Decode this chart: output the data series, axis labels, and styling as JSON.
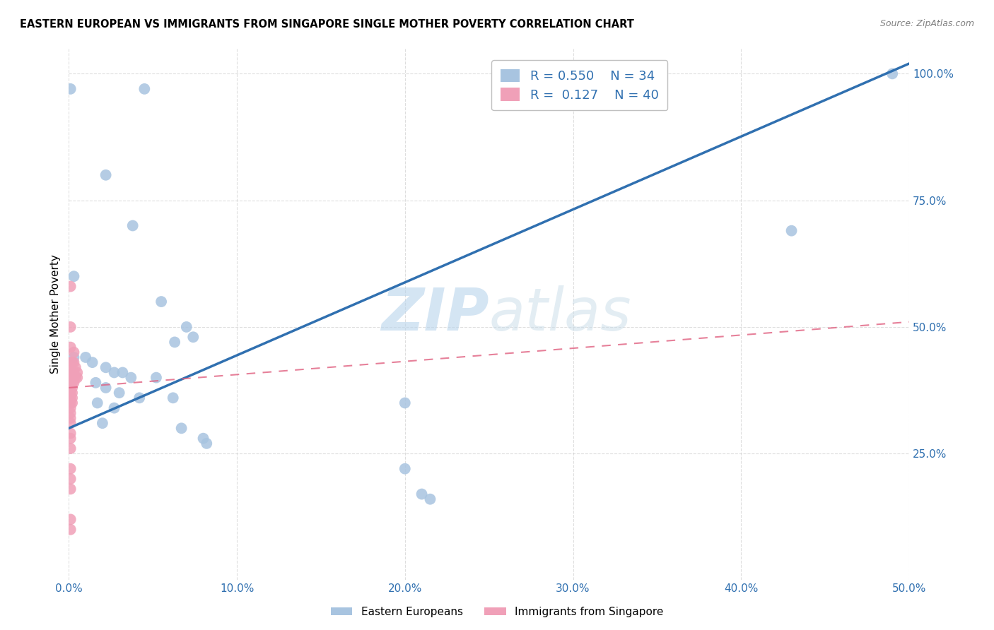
{
  "title": "EASTERN EUROPEAN VS IMMIGRANTS FROM SINGAPORE SINGLE MOTHER POVERTY CORRELATION CHART",
  "source": "Source: ZipAtlas.com",
  "ylabel": "Single Mother Poverty",
  "legend_label1": "Eastern Europeans",
  "legend_label2": "Immigrants from Singapore",
  "R1": 0.55,
  "N1": 34,
  "R2": 0.127,
  "N2": 40,
  "watermark_zip": "ZIP",
  "watermark_atlas": "atlas",
  "blue_color": "#a8c4e0",
  "pink_color": "#f0a0b8",
  "blue_line_color": "#3070b0",
  "pink_line_color": "#e06080",
  "blue_scatter": [
    [
      0.001,
      0.97
    ],
    [
      0.045,
      0.97
    ],
    [
      0.022,
      0.8
    ],
    [
      0.038,
      0.7
    ],
    [
      0.003,
      0.6
    ],
    [
      0.055,
      0.55
    ],
    [
      0.07,
      0.5
    ],
    [
      0.074,
      0.48
    ],
    [
      0.063,
      0.47
    ],
    [
      0.003,
      0.44
    ],
    [
      0.01,
      0.44
    ],
    [
      0.014,
      0.43
    ],
    [
      0.022,
      0.42
    ],
    [
      0.027,
      0.41
    ],
    [
      0.032,
      0.41
    ],
    [
      0.037,
      0.4
    ],
    [
      0.052,
      0.4
    ],
    [
      0.016,
      0.39
    ],
    [
      0.022,
      0.38
    ],
    [
      0.03,
      0.37
    ],
    [
      0.042,
      0.36
    ],
    [
      0.062,
      0.36
    ],
    [
      0.017,
      0.35
    ],
    [
      0.027,
      0.34
    ],
    [
      0.02,
      0.31
    ],
    [
      0.067,
      0.3
    ],
    [
      0.08,
      0.28
    ],
    [
      0.082,
      0.27
    ],
    [
      0.2,
      0.35
    ],
    [
      0.2,
      0.22
    ],
    [
      0.21,
      0.17
    ],
    [
      0.215,
      0.16
    ],
    [
      0.43,
      0.69
    ],
    [
      0.49,
      1.0
    ]
  ],
  "pink_scatter": [
    [
      0.001,
      0.58
    ],
    [
      0.001,
      0.5
    ],
    [
      0.001,
      0.46
    ],
    [
      0.003,
      0.45
    ],
    [
      0.001,
      0.43
    ],
    [
      0.002,
      0.43
    ],
    [
      0.003,
      0.43
    ],
    [
      0.004,
      0.42
    ],
    [
      0.001,
      0.41
    ],
    [
      0.002,
      0.41
    ],
    [
      0.003,
      0.41
    ],
    [
      0.005,
      0.41
    ],
    [
      0.001,
      0.4
    ],
    [
      0.002,
      0.4
    ],
    [
      0.003,
      0.4
    ],
    [
      0.004,
      0.4
    ],
    [
      0.005,
      0.4
    ],
    [
      0.001,
      0.39
    ],
    [
      0.002,
      0.39
    ],
    [
      0.003,
      0.39
    ],
    [
      0.001,
      0.38
    ],
    [
      0.002,
      0.38
    ],
    [
      0.001,
      0.37
    ],
    [
      0.002,
      0.37
    ],
    [
      0.001,
      0.36
    ],
    [
      0.002,
      0.36
    ],
    [
      0.001,
      0.35
    ],
    [
      0.002,
      0.35
    ],
    [
      0.001,
      0.34
    ],
    [
      0.001,
      0.33
    ],
    [
      0.001,
      0.32
    ],
    [
      0.001,
      0.31
    ],
    [
      0.001,
      0.29
    ],
    [
      0.001,
      0.28
    ],
    [
      0.001,
      0.26
    ],
    [
      0.001,
      0.22
    ],
    [
      0.001,
      0.2
    ],
    [
      0.001,
      0.18
    ],
    [
      0.001,
      0.12
    ],
    [
      0.001,
      0.1
    ]
  ],
  "blue_line": [
    [
      0.0,
      0.3
    ],
    [
      0.5,
      1.02
    ]
  ],
  "pink_line": [
    [
      0.0,
      0.38
    ],
    [
      0.5,
      0.51
    ]
  ],
  "xlim": [
    0.0,
    0.5
  ],
  "ylim": [
    0.0,
    1.05
  ],
  "xticks": [
    0.0,
    0.1,
    0.2,
    0.3,
    0.4,
    0.5
  ],
  "xtick_labels": [
    "0.0%",
    "10.0%",
    "20.0%",
    "30.0%",
    "40.0%",
    "50.0%"
  ],
  "yticks": [
    0.25,
    0.5,
    0.75,
    1.0
  ],
  "ytick_labels": [
    "25.0%",
    "50.0%",
    "75.0%",
    "100.0%"
  ]
}
